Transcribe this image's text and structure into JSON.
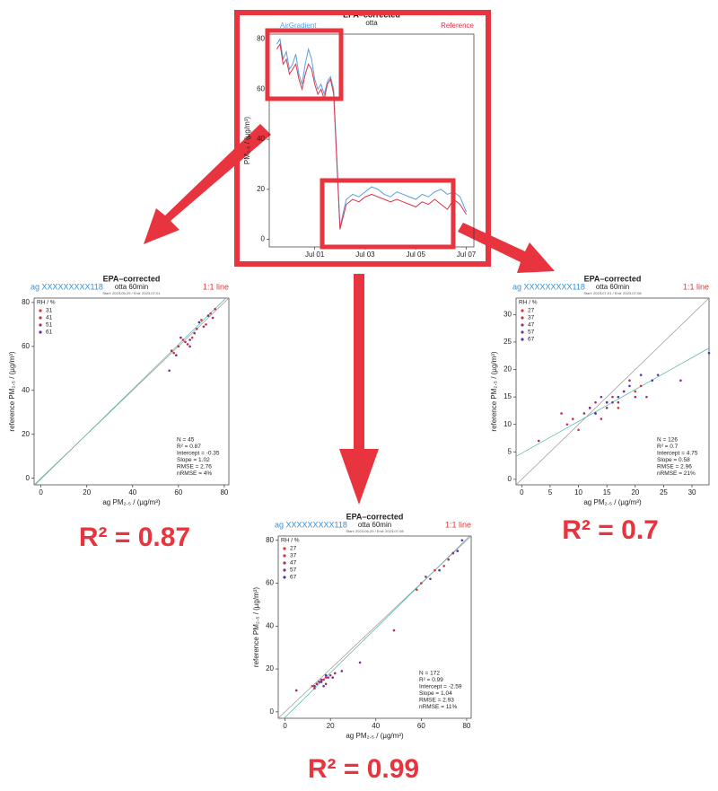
{
  "chart_data": [
    {
      "type": "line",
      "title": "EPA–corrected",
      "subtitle": "otta",
      "y_label": "PM₂.₅ / (µg/m³)",
      "x": [
        -0.5,
        -0.375,
        -0.25,
        -0.125,
        0,
        0.125,
        0.25,
        0.375,
        0.5,
        0.625,
        0.75,
        0.875,
        1,
        1.125,
        1.25,
        1.375,
        1.5,
        1.625,
        1.75,
        2,
        2.25,
        2.5,
        2.75,
        3,
        3.25,
        3.5,
        3.75,
        4,
        4.25,
        4.5,
        4.75,
        5,
        5.25,
        5.5,
        5.75,
        6,
        6.25,
        6.5,
        6.75,
        7
      ],
      "xlim": [
        -0.8,
        7.3
      ],
      "xticks": [
        {
          "value": 1,
          "label": "Jul 01"
        },
        {
          "value": 3,
          "label": "Jul 03"
        },
        {
          "value": 5,
          "label": "Jul 05"
        },
        {
          "value": 7,
          "label": "Jul 07"
        }
      ],
      "ylim": [
        -3,
        82
      ],
      "yticks": [
        0,
        20,
        40,
        60,
        80
      ],
      "series": [
        {
          "name": "AirGradient",
          "color": "#5aa0dc",
          "values": [
            78,
            80,
            72,
            75,
            68,
            70,
            74,
            66,
            62,
            70,
            76,
            72,
            64,
            60,
            62,
            58,
            63,
            65,
            60,
            5,
            16,
            18,
            17,
            19,
            21,
            20,
            18,
            17,
            19,
            18,
            17,
            16,
            18,
            17,
            19,
            20,
            18,
            19,
            17,
            11
          ]
        },
        {
          "name": "Reference",
          "color": "#d8344a",
          "values": [
            76,
            78,
            70,
            72,
            66,
            68,
            70,
            64,
            60,
            66,
            70,
            68,
            62,
            58,
            60,
            56,
            62,
            64,
            58,
            4,
            14,
            16,
            15,
            17,
            18,
            17,
            16,
            15,
            16,
            15,
            14,
            13,
            15,
            14,
            16,
            14,
            12,
            16,
            14,
            10
          ]
        }
      ]
    },
    {
      "type": "scatter",
      "title": "EPA–corrected",
      "subtitle": "otta 60min",
      "device_label": "ag XXXXXXXXX118",
      "line_label": "1:1 line",
      "period": "Start: 2023-06-29 / End: 2023-07-01",
      "legend_title": "RH / %",
      "x_label": "ag PM₂.₅ / (µg/m³)",
      "y_label": "reference PM₂.₅ / (µg/m³)",
      "xlim": [
        -3,
        82
      ],
      "xticks": [
        0,
        20,
        40,
        60,
        80
      ],
      "ylim": [
        -3,
        82
      ],
      "yticks": [
        0,
        20,
        40,
        60,
        80
      ],
      "series": [
        {
          "name": "31",
          "color": "#e8312f",
          "x": [
            58,
            62,
            66,
            70,
            74
          ],
          "values": [
            57,
            63,
            64,
            72,
            75
          ]
        },
        {
          "name": "41",
          "color": "#c0304a",
          "x": [
            60,
            64,
            68,
            72,
            76
          ],
          "values": [
            60,
            61,
            68,
            70,
            77
          ]
        },
        {
          "name": "51",
          "color": "#983070",
          "x": [
            57,
            63,
            67,
            71,
            75,
            65
          ],
          "values": [
            58,
            62,
            66,
            69,
            73,
            60
          ]
        },
        {
          "name": "61",
          "color": "#6a2aa0",
          "x": [
            59,
            61,
            65,
            69,
            73,
            56
          ],
          "values": [
            56,
            64,
            63,
            71,
            74,
            49
          ]
        }
      ],
      "stats": [
        {
          "value": 45,
          "label": "N = 45"
        },
        {
          "value": 0.87,
          "label": "R² = 0.87"
        },
        {
          "value": -0.35,
          "label": "Intercept = -0.35"
        },
        {
          "value": 1.02,
          "label": "Slope = 1.02"
        },
        {
          "value": 2.76,
          "label": "RMSE = 2.76"
        },
        {
          "value": 4,
          "label": "nRMSE = 4%"
        }
      ],
      "headline": "R² = 0.87"
    },
    {
      "type": "scatter",
      "title": "EPA–corrected",
      "subtitle": "otta 60min",
      "device_label": "ag XXXXXXXXX118",
      "line_label": "1:1 line",
      "period": "Start: 2023-07-01 / End: 2023-07-08",
      "legend_title": "RH / %",
      "x_label": "ag PM₂.₅ / (µg/m³)",
      "y_label": "reference PM₂.₅ / (µg/m³)",
      "xlim": [
        -1,
        33
      ],
      "xticks": [
        0,
        5,
        10,
        15,
        20,
        25,
        30
      ],
      "ylim": [
        -1,
        33
      ],
      "yticks": [
        0,
        5,
        10,
        15,
        20,
        25,
        30
      ],
      "series": [
        {
          "name": "27",
          "color": "#e8312f",
          "x": [
            8,
            10,
            13,
            15,
            17,
            20
          ],
          "values": [
            10,
            9,
            12,
            14,
            13,
            16
          ]
        },
        {
          "name": "37",
          "color": "#c8303f",
          "x": [
            9,
            12,
            14,
            16,
            18,
            21,
            7
          ],
          "values": [
            11,
            13,
            11,
            15,
            16,
            17,
            12
          ]
        },
        {
          "name": "47",
          "color": "#a03060",
          "x": [
            11,
            13,
            15,
            17,
            19,
            22,
            3
          ],
          "values": [
            12,
            14,
            13,
            14,
            18,
            15,
            7
          ]
        },
        {
          "name": "57",
          "color": "#783090",
          "x": [
            12,
            14,
            16,
            18,
            20,
            24,
            28
          ],
          "values": [
            13,
            15,
            14,
            16,
            15,
            19,
            18
          ]
        },
        {
          "name": "67",
          "color": "#5030c0",
          "x": [
            13,
            15,
            17,
            19,
            21,
            23,
            33
          ],
          "values": [
            12,
            14,
            15,
            17,
            19,
            18,
            23
          ]
        }
      ],
      "stats": [
        {
          "value": 126,
          "label": "N = 126"
        },
        {
          "value": 0.7,
          "label": "R² = 0.7"
        },
        {
          "value": 4.75,
          "label": "Intercept = 4.75"
        },
        {
          "value": 0.58,
          "label": "Slope = 0.58"
        },
        {
          "value": 2.96,
          "label": "RMSE = 2.96"
        },
        {
          "value": 21,
          "label": "nRMSE = 21%"
        }
      ],
      "headline": "R² = 0.7"
    },
    {
      "type": "scatter",
      "title": "EPA–corrected",
      "subtitle": "otta 60min",
      "device_label": "ag XXXXXXXXX118",
      "line_label": "1:1 line",
      "period": "Start: 2023-06-29 / End: 2023-07-08",
      "legend_title": "RH / %",
      "x_label": "ag PM₂.₅ / (µg/m³)",
      "y_label": "reference PM₂.₅ / (µg/m³)",
      "xlim": [
        -3,
        82
      ],
      "xticks": [
        0,
        20,
        40,
        60,
        80
      ],
      "ylim": [
        -3,
        82
      ],
      "yticks": [
        0,
        20,
        40,
        60,
        80
      ],
      "series": [
        {
          "name": "27",
          "color": "#e8312f",
          "x": [
            12,
            14,
            16,
            18,
            58,
            66
          ],
          "values": [
            12,
            13,
            14,
            16,
            57,
            66
          ]
        },
        {
          "name": "37",
          "color": "#c8303f",
          "x": [
            13,
            15,
            17,
            20,
            60,
            70,
            48
          ],
          "values": [
            11,
            14,
            15,
            17,
            60,
            68,
            38
          ]
        },
        {
          "name": "47",
          "color": "#a03060",
          "x": [
            14,
            16,
            18,
            22,
            62,
            72,
            5
          ],
          "values": [
            13,
            15,
            13,
            18,
            63,
            71,
            10
          ]
        },
        {
          "name": "57",
          "color": "#783090",
          "x": [
            15,
            17,
            19,
            25,
            64,
            74,
            33
          ],
          "values": [
            14,
            12,
            16,
            19,
            62,
            74,
            23
          ]
        },
        {
          "name": "67",
          "color": "#5030c0",
          "x": [
            13,
            16,
            18,
            21,
            68,
            76,
            78
          ],
          "values": [
            12,
            14,
            17,
            16,
            66,
            75,
            80
          ]
        }
      ],
      "stats": [
        {
          "value": 172,
          "label": "N = 172"
        },
        {
          "value": 0.99,
          "label": "R² = 0.99"
        },
        {
          "value": -2.59,
          "label": "Intercept = -2.59"
        },
        {
          "value": 1.04,
          "label": "Slope = 1.04"
        },
        {
          "value": 2.93,
          "label": "RMSE = 2.93"
        },
        {
          "value": 11,
          "label": "nRMSE = 11%"
        }
      ],
      "headline": "R² = 0.99"
    }
  ]
}
